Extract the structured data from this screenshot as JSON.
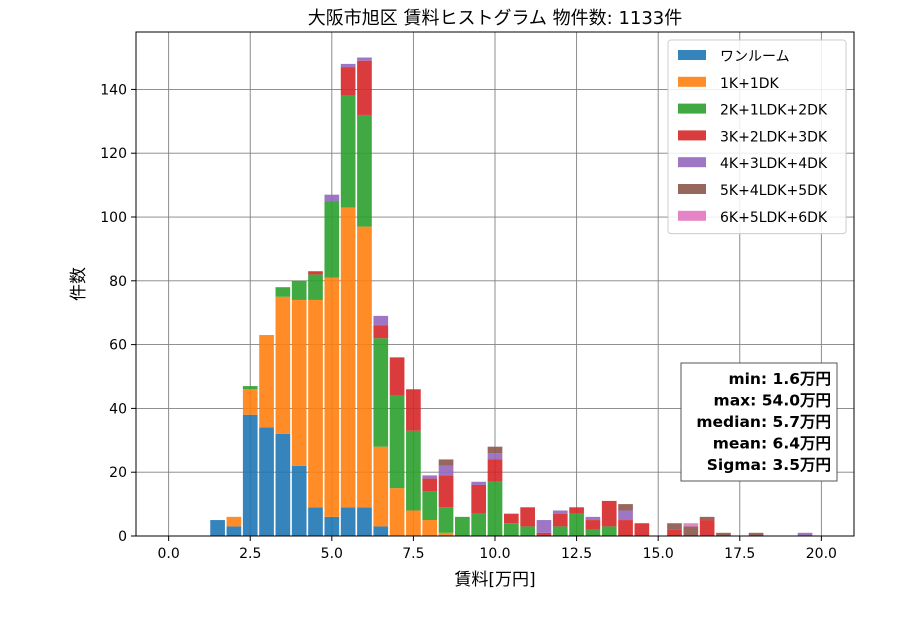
{
  "chart_data": {
    "type": "bar",
    "stacked": true,
    "title": "大阪市旭区 賃料ヒストグラム  物件数: 1133件",
    "xlabel": "賃料[万円]",
    "ylabel": "件数",
    "xlim": [
      -1.0,
      21.0
    ],
    "ylim": [
      0,
      158
    ],
    "xticks": [
      0.0,
      2.5,
      5.0,
      7.5,
      10.0,
      12.5,
      15.0,
      17.5,
      20.0
    ],
    "xtick_labels": [
      "0.0",
      "2.5",
      "5.0",
      "7.5",
      "10.0",
      "12.5",
      "15.0",
      "17.5",
      "20.0"
    ],
    "yticks": [
      0,
      20,
      40,
      60,
      80,
      100,
      120,
      140
    ],
    "ytick_labels": [
      "0",
      "20",
      "40",
      "60",
      "80",
      "100",
      "120",
      "140"
    ],
    "grid": true,
    "legend_position": "top-right",
    "bin_width": 0.5,
    "x": [
      1.5,
      2.0,
      2.5,
      3.0,
      3.5,
      4.0,
      4.5,
      5.0,
      5.5,
      6.0,
      6.5,
      7.0,
      7.5,
      8.0,
      8.5,
      9.0,
      9.5,
      10.0,
      10.5,
      11.0,
      11.5,
      12.0,
      12.5,
      13.0,
      13.5,
      14.0,
      14.5,
      15.5,
      16.0,
      16.5,
      17.0,
      18.0,
      19.5
    ],
    "series": [
      {
        "name": "ワンルーム",
        "color": "#1f77b4",
        "values": [
          5,
          3,
          38,
          34,
          32,
          22,
          9,
          6,
          9,
          9,
          3,
          0,
          0,
          0,
          0,
          0,
          0,
          0,
          0,
          0,
          0,
          0,
          0,
          0,
          0,
          0,
          0,
          0,
          0,
          0,
          0,
          0,
          0
        ]
      },
      {
        "name": "1K+1DK",
        "color": "#ff7f0e",
        "values": [
          0,
          3,
          8,
          29,
          43,
          52,
          65,
          75,
          94,
          88,
          25,
          15,
          8,
          5,
          1,
          0,
          0,
          0,
          0,
          0,
          0,
          0,
          0,
          0,
          0,
          0,
          0,
          0,
          0,
          0,
          0,
          0,
          0
        ]
      },
      {
        "name": "2K+1LDK+2DK",
        "color": "#2ca02c",
        "values": [
          0,
          0,
          1,
          0,
          3,
          6,
          8,
          24,
          35,
          35,
          34,
          29,
          25,
          9,
          8,
          6,
          7,
          17,
          4,
          3,
          0,
          3,
          7,
          2,
          3,
          0,
          0,
          0,
          0,
          0,
          0,
          0,
          0
        ]
      },
      {
        "name": "3K+2LDK+3DK",
        "color": "#d62728",
        "values": [
          0,
          0,
          0,
          0,
          0,
          0,
          1,
          0,
          9,
          17,
          4,
          12,
          13,
          4,
          10,
          0,
          9,
          7,
          3,
          6,
          1,
          4,
          2,
          3,
          8,
          5,
          4,
          2,
          0,
          5,
          0,
          0,
          0
        ]
      },
      {
        "name": "4K+3LDK+4DK",
        "color": "#9467bd",
        "values": [
          0,
          0,
          0,
          0,
          0,
          0,
          0,
          2,
          1,
          1,
          3,
          0,
          0,
          1,
          3,
          0,
          1,
          2,
          0,
          0,
          4,
          1,
          0,
          1,
          0,
          3,
          0,
          0,
          0,
          0,
          0,
          0,
          1
        ]
      },
      {
        "name": "5K+4LDK+5DK",
        "color": "#8c564b",
        "values": [
          0,
          0,
          0,
          0,
          0,
          0,
          0,
          0,
          0,
          0,
          0,
          0,
          0,
          0,
          2,
          0,
          0,
          2,
          0,
          0,
          0,
          0,
          0,
          0,
          0,
          2,
          0,
          2,
          3,
          1,
          1,
          1,
          0
        ]
      },
      {
        "name": "6K+5LDK+6DK",
        "color": "#e377c2",
        "values": [
          0,
          0,
          0,
          0,
          0,
          0,
          0,
          0,
          0,
          0,
          0,
          0,
          0,
          0,
          0,
          0,
          0,
          0,
          0,
          0,
          0,
          0,
          0,
          0,
          0,
          0,
          0,
          0,
          1,
          0,
          0,
          0,
          0
        ]
      }
    ],
    "stats": [
      "min: 1.6万円",
      "max: 54.0万円",
      "median: 5.7万円",
      "mean: 6.4万円",
      "Sigma: 3.5万円"
    ]
  }
}
